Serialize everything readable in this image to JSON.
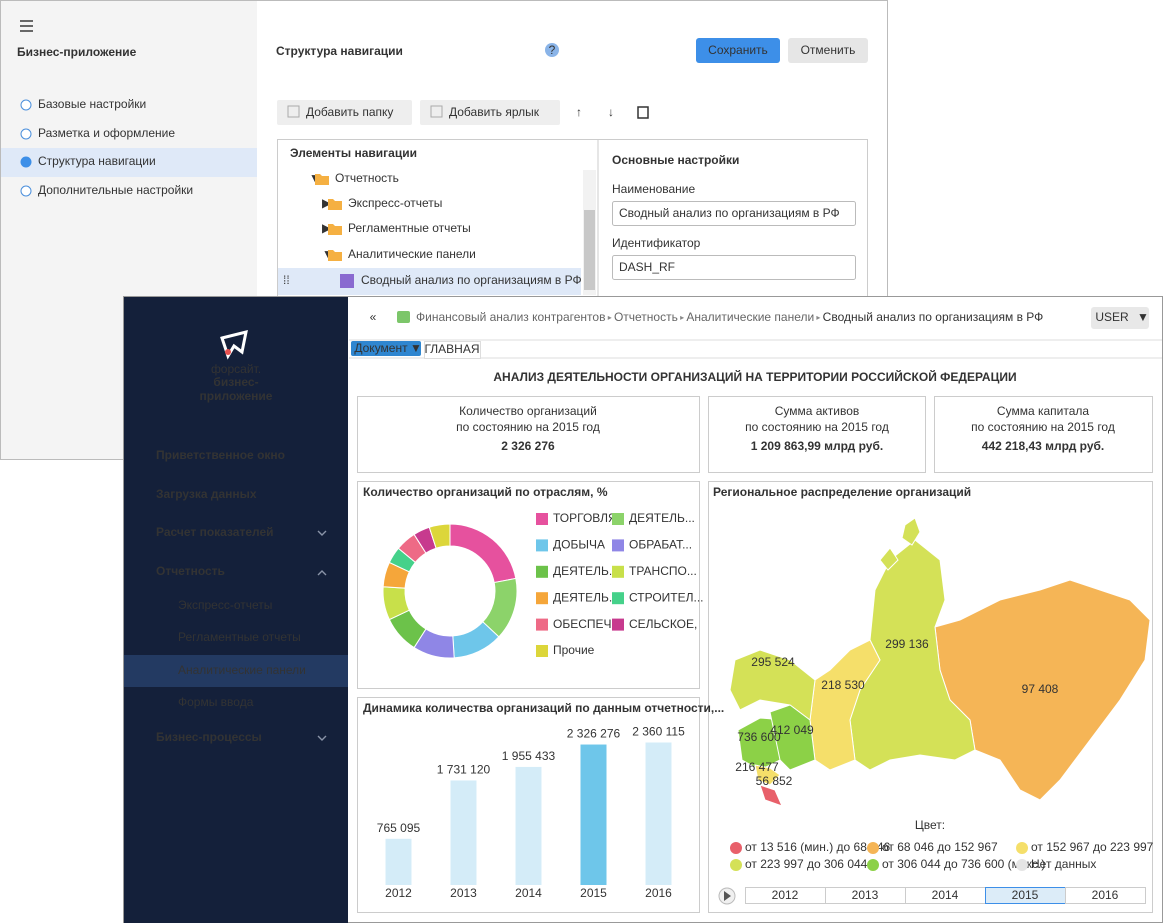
{
  "back_window": {
    "app_title": "Бизнес-приложение",
    "menu": [
      "Базовые настройки",
      "Разметка и оформление",
      "Структура навигации",
      "Дополнительные настройки"
    ],
    "page_title": "Структура навигации",
    "save": "Сохранить",
    "cancel": "Отменить",
    "toolbar": [
      "Добавить папку",
      "Добавить ярлык"
    ],
    "tree_title": "Элементы навигации",
    "tree": [
      "Отчетность",
      "Экспресс-отчеты",
      "Регламентные отчеты",
      "Аналитические панели",
      "Сводный анализ по организациям в РФ"
    ],
    "settings_title": "Основные настройки",
    "name_label": "Наименование",
    "name_value": "Сводный анализ по организациям в РФ",
    "id_label": "Идентификатор",
    "id_value": "DASH_RF"
  },
  "dashboard": {
    "logo": [
      "форсайт.",
      "бизнес-",
      "приложение"
    ],
    "menu": [
      "Приветственное окно",
      "Загрузка данных",
      "Расчет показателей",
      "Отчетность",
      "Бизнес-процессы"
    ],
    "submenu": [
      "Экспресс-отчеты",
      "Регламентные отчеты",
      "Аналитические панели",
      "Формы ввода"
    ],
    "breadcrumb": [
      "Финансовый анализ контрагентов",
      "Отчетность",
      "Аналитические панели",
      "Сводный анализ по организациям в РФ"
    ],
    "user": "USER",
    "tabs": [
      "Документ",
      "ГЛАВНАЯ"
    ],
    "title": "АНАЛИЗ ДЕЯТЕЛЬНОСТИ ОРГАНИЗАЦИЙ НА ТЕРРИТОРИИ РОССИЙСКОЙ ФЕДЕРАЦИИ",
    "kpis": [
      {
        "label": "Количество организаций",
        "sub": "по состоянию на 2015 год",
        "value": "2 326 276"
      },
      {
        "label": "Сумма активов",
        "sub": "по состоянию на 2015 год",
        "value": "1 209 863,99 млрд руб."
      },
      {
        "label": "Сумма капитала",
        "sub": "по состоянию на 2015 год",
        "value": "442 218,43 млрд руб."
      }
    ],
    "map": {
      "title": "Региональное распределение организаций",
      "labels": [
        "299 136",
        "295 524",
        "218 530",
        "97 408",
        "736 600",
        "412 049",
        "216 477",
        "56 852"
      ],
      "legend_title": "Цвет:",
      "legend": [
        {
          "label": "от 13 516 (мин.) до 68 046",
          "color": "#e8606a"
        },
        {
          "label": "от 68 046 до 152 967",
          "color": "#f5b556"
        },
        {
          "label": "от 152 967 до 223 997",
          "color": "#f5df6a"
        },
        {
          "label": "от 223 997 до 306 044",
          "color": "#d4e157"
        },
        {
          "label": "от 306 044 до 736 600 (макс.)",
          "color": "#8cd147"
        },
        {
          "label": "Нет данных",
          "color": "#e5e5e5"
        }
      ],
      "timeline": [
        "2012",
        "2013",
        "2014",
        "2015",
        "2016"
      ]
    }
  },
  "chart_data": [
    {
      "type": "pie",
      "title": "Количество организаций по отраслям, %",
      "categories": [
        "ТОРГОВЛЯ",
        "ДЕЯТЕЛЬ...",
        "ДОБЫЧА",
        "ОБРАБАТ...",
        "ДЕЯТЕЛЬ...",
        "ТРАНСПО...",
        "ДЕЯТЕЛЬ...",
        "СТРОИТЕЛ...",
        "ОБЕСПЕЧ...",
        "СЕЛЬСКОЕ,",
        "Прочие"
      ],
      "values": [
        22,
        15,
        12,
        10,
        9,
        8,
        6,
        4,
        5,
        4,
        5
      ],
      "colors": [
        "#e6519e",
        "#8cd36a",
        "#6ec6ea",
        "#8f86e6",
        "#6cc24a",
        "#c8e04a",
        "#f5a63a",
        "#45d18a",
        "#ee6a86",
        "#c73a8e",
        "#dcd63a"
      ],
      "donut": true,
      "legend": "right"
    },
    {
      "type": "bar",
      "title": "Динамика количества организаций по данным отчетности,...",
      "categories": [
        "2012",
        "2013",
        "2014",
        "2015",
        "2016"
      ],
      "values": [
        765095,
        1731120,
        1955433,
        2326276,
        2360115
      ],
      "value_labels": [
        "765 095",
        "1 731 120",
        "1 955 433",
        "2 326 276",
        "2 360 115"
      ],
      "colors": [
        "#d4ecf8",
        "#d4ecf8",
        "#d4ecf8",
        "#6ec6ea",
        "#d4ecf8"
      ],
      "ylim": [
        0,
        2600000
      ]
    }
  ]
}
